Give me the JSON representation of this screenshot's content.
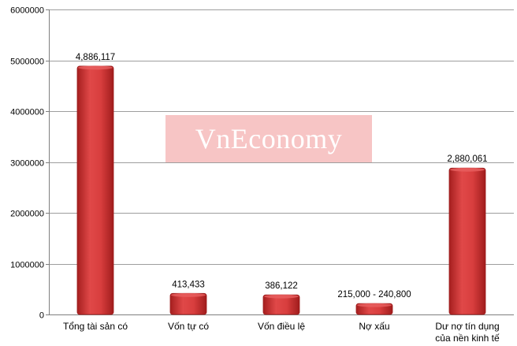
{
  "watermark_text": "VnEconomy",
  "colors": {
    "bar": "#d63a3a",
    "bar_dark": "#9c1a1a",
    "grid": "#9e9e9e",
    "axis": "#7f7f7f"
  },
  "chart_data": {
    "type": "bar",
    "title": "",
    "xlabel": "",
    "ylabel": "",
    "ylim": [
      0,
      6000000
    ],
    "yticks": [
      0,
      1000000,
      2000000,
      3000000,
      4000000,
      5000000,
      6000000
    ],
    "ytick_labels": [
      "0",
      "1000000",
      "2000000",
      "3000000",
      "4000000",
      "5000000",
      "6000000"
    ],
    "grid": true,
    "categories": [
      [
        "Tổng tài sản có"
      ],
      [
        "Vốn tự có"
      ],
      [
        "Vốn điều lệ"
      ],
      [
        "Nợ xấu"
      ],
      [
        "Dư nợ tín dụng",
        "của nền kinh tế"
      ]
    ],
    "values": [
      4886117,
      413433,
      386122,
      215000,
      2880061
    ],
    "data_labels": [
      "4,886,117",
      "413,433",
      "386,122",
      "215,000 - 240,800",
      "2,880,061"
    ]
  }
}
